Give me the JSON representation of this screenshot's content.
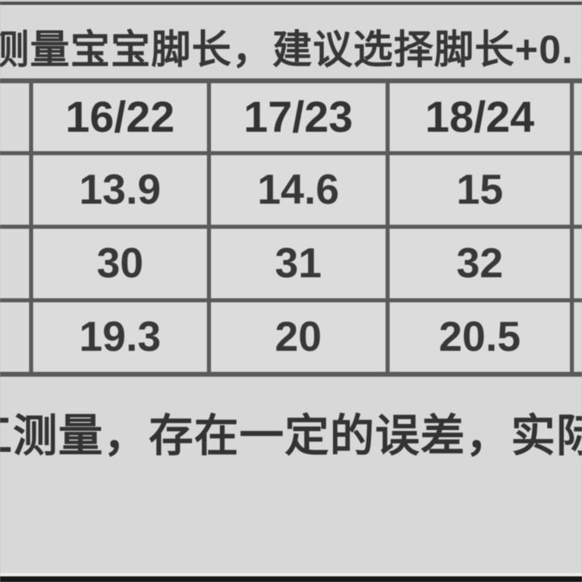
{
  "notes": {
    "top": "测量宝宝脚长，建议选择脚长+0.",
    "bottom": "工测量，存在一定的误差，实际情"
  },
  "size_table": {
    "columns": [
      "16/22",
      "17/23",
      "18/24"
    ],
    "rows": [
      [
        "13.9",
        "14.6",
        "15"
      ],
      [
        "30",
        "31",
        "32"
      ],
      [
        "19.3",
        "20",
        "20.5"
      ]
    ]
  },
  "colors": {
    "page_background": "#d8d8d8",
    "cell_background": "#dcdcdc",
    "table_border": "#5a5a5a",
    "text": "#363636",
    "top_divider": "#4e4e4e",
    "bottom_bar": "#161616"
  }
}
